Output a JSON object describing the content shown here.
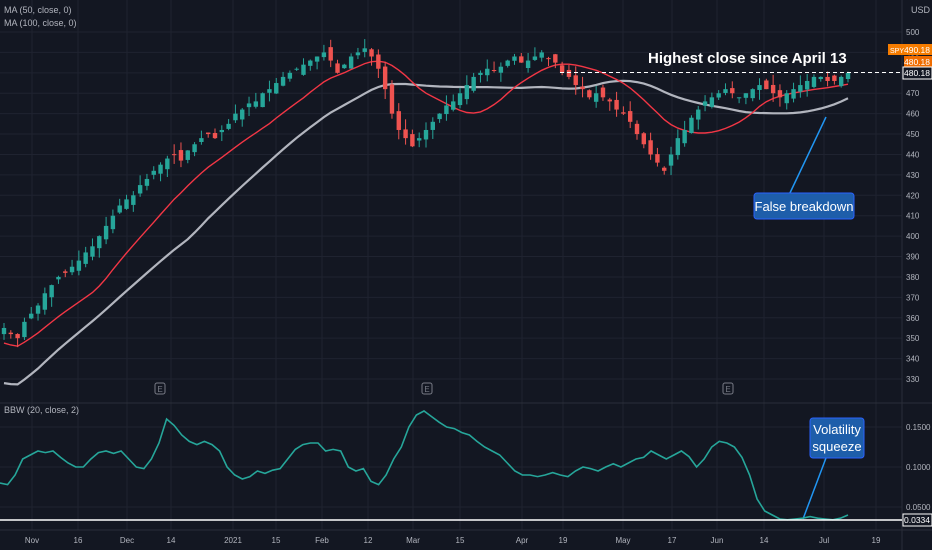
{
  "chart_data": {
    "type": "candlestick",
    "currency": "USD",
    "price_axis": {
      "ylim": [
        325,
        505
      ],
      "ticks": [
        330,
        340,
        350,
        360,
        370,
        380,
        390,
        400,
        410,
        420,
        430,
        440,
        450,
        460,
        470,
        480,
        490,
        500
      ]
    },
    "indicator_axis": {
      "ylim": [
        0.028,
        0.18
      ],
      "ticks": [
        "0.0500",
        "0.1000",
        "0.1500"
      ]
    },
    "x_ticks": [
      "Nov",
      "16",
      "Dec",
      "14",
      "2021",
      "15",
      "Feb",
      "12",
      "Mar",
      "15",
      "Apr",
      "19",
      "May",
      "17",
      "Jun",
      "14",
      "Jul",
      "19"
    ],
    "indicators": [
      {
        "name": "MA (50, close, 0)",
        "color": "#f23645"
      },
      {
        "name": "MA (100, close, 0)",
        "color": "#b2b5be"
      }
    ],
    "bbw_label": "BBW (20, close, 2)",
    "bbw_color": "#26a69a",
    "last_price": "480.18",
    "last_price_box": "480.18",
    "symbol_badge": "SPY",
    "price_badge_top": "490.18",
    "price_badge_bottom": "480.18",
    "bbw_last": "0.0334",
    "highest_close_level": 480.18,
    "annotations": {
      "highest_close": "Highest close since April 13",
      "false_breakdown": "False breakdown",
      "volatility_squeeze_1": "Volatility",
      "volatility_squeeze_2": "squeeze"
    },
    "earnings_marker": "E",
    "close_series": [
      355,
      352,
      350,
      358,
      362,
      366,
      372,
      376,
      380,
      382,
      385,
      388,
      392,
      395,
      400,
      405,
      410,
      415,
      418,
      420,
      425,
      428,
      432,
      435,
      438,
      440,
      437,
      442,
      445,
      448,
      450,
      448,
      452,
      455,
      460,
      462,
      465,
      466,
      470,
      472,
      475,
      478,
      480,
      482,
      484,
      486,
      488,
      490,
      486,
      480,
      484,
      488,
      490,
      492,
      488,
      482,
      472,
      460,
      452,
      448,
      444,
      448,
      452,
      456,
      460,
      464,
      466,
      470,
      474,
      478,
      480,
      482,
      481,
      483,
      486,
      488,
      485,
      486,
      488,
      490,
      487,
      485,
      480,
      478,
      474,
      472,
      468,
      470,
      468,
      466,
      462,
      460,
      456,
      450,
      445,
      440,
      436,
      432,
      440,
      448,
      452,
      458,
      462,
      466,
      468,
      470,
      472,
      470,
      468,
      470,
      472,
      474,
      472,
      470,
      468,
      470,
      472,
      474,
      476,
      478,
      478,
      476,
      476,
      478,
      480
    ]
  }
}
